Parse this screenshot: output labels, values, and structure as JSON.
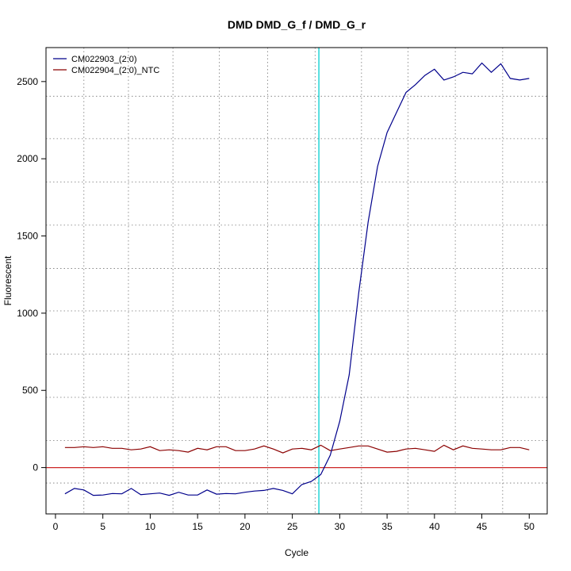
{
  "chart_data": {
    "type": "line",
    "title": "DMD  DMD_G_f / DMD_G_r",
    "xlabel": "Cycle",
    "ylabel": "Fluorescent",
    "xlim": [
      -1,
      51.9
    ],
    "ylim": [
      -300,
      2720
    ],
    "xticks": [
      0,
      5,
      10,
      15,
      20,
      25,
      30,
      35,
      40,
      45,
      50
    ],
    "yticks": [
      0,
      500,
      1000,
      1500,
      2000,
      2500
    ],
    "v_grid": [
      3.0,
      7.7,
      12.4,
      17.3,
      22.4,
      27.4,
      32.3,
      37.2,
      42.2,
      47.2
    ],
    "h_grid": [
      -100,
      175,
      455,
      735,
      1015,
      1290,
      1570,
      1850,
      2130,
      2405
    ],
    "threshold_x": 27.8,
    "baseline_y": 0,
    "legend_position": "top-left",
    "series": [
      {
        "name": "CM022903_(2:0)",
        "color": "#00008B",
        "x": [
          1,
          2,
          3,
          4,
          5,
          6,
          7,
          8,
          9,
          10,
          11,
          12,
          13,
          14,
          15,
          16,
          17,
          18,
          19,
          20,
          21,
          22,
          23,
          24,
          25,
          26,
          27,
          28,
          29,
          30,
          31,
          32,
          33,
          34,
          35,
          36,
          37,
          38,
          39,
          40,
          41,
          42,
          43,
          44,
          45,
          46,
          47,
          48,
          49,
          50
        ],
        "values": [
          -170,
          -135,
          -145,
          -180,
          -178,
          -168,
          -170,
          -135,
          -175,
          -170,
          -165,
          -180,
          -160,
          -178,
          -178,
          -145,
          -172,
          -168,
          -170,
          -160,
          -152,
          -148,
          -135,
          -148,
          -170,
          -110,
          -90,
          -45,
          80,
          300,
          600,
          1130,
          1590,
          1950,
          2170,
          2300,
          2430,
          2480,
          2540,
          2580,
          2510,
          2530,
          2560,
          2550,
          2620,
          2560,
          2615,
          2520,
          2510,
          2520
        ]
      },
      {
        "name": "CM022904_(2:0)_NTC",
        "color": "#8B0000",
        "x": [
          1,
          2,
          3,
          4,
          5,
          6,
          7,
          8,
          9,
          10,
          11,
          12,
          13,
          14,
          15,
          16,
          17,
          18,
          19,
          20,
          21,
          22,
          23,
          24,
          25,
          26,
          27,
          28,
          29,
          30,
          31,
          32,
          33,
          34,
          35,
          36,
          37,
          38,
          39,
          40,
          41,
          42,
          43,
          44,
          45,
          46,
          47,
          48,
          49,
          50
        ],
        "values": [
          130,
          130,
          135,
          130,
          135,
          125,
          125,
          115,
          120,
          135,
          110,
          115,
          110,
          100,
          125,
          115,
          135,
          135,
          110,
          110,
          120,
          140,
          120,
          95,
          120,
          125,
          115,
          145,
          110,
          120,
          130,
          140,
          140,
          120,
          100,
          105,
          120,
          125,
          115,
          105,
          145,
          115,
          140,
          125,
          120,
          115,
          115,
          130,
          130,
          115
        ]
      }
    ]
  }
}
